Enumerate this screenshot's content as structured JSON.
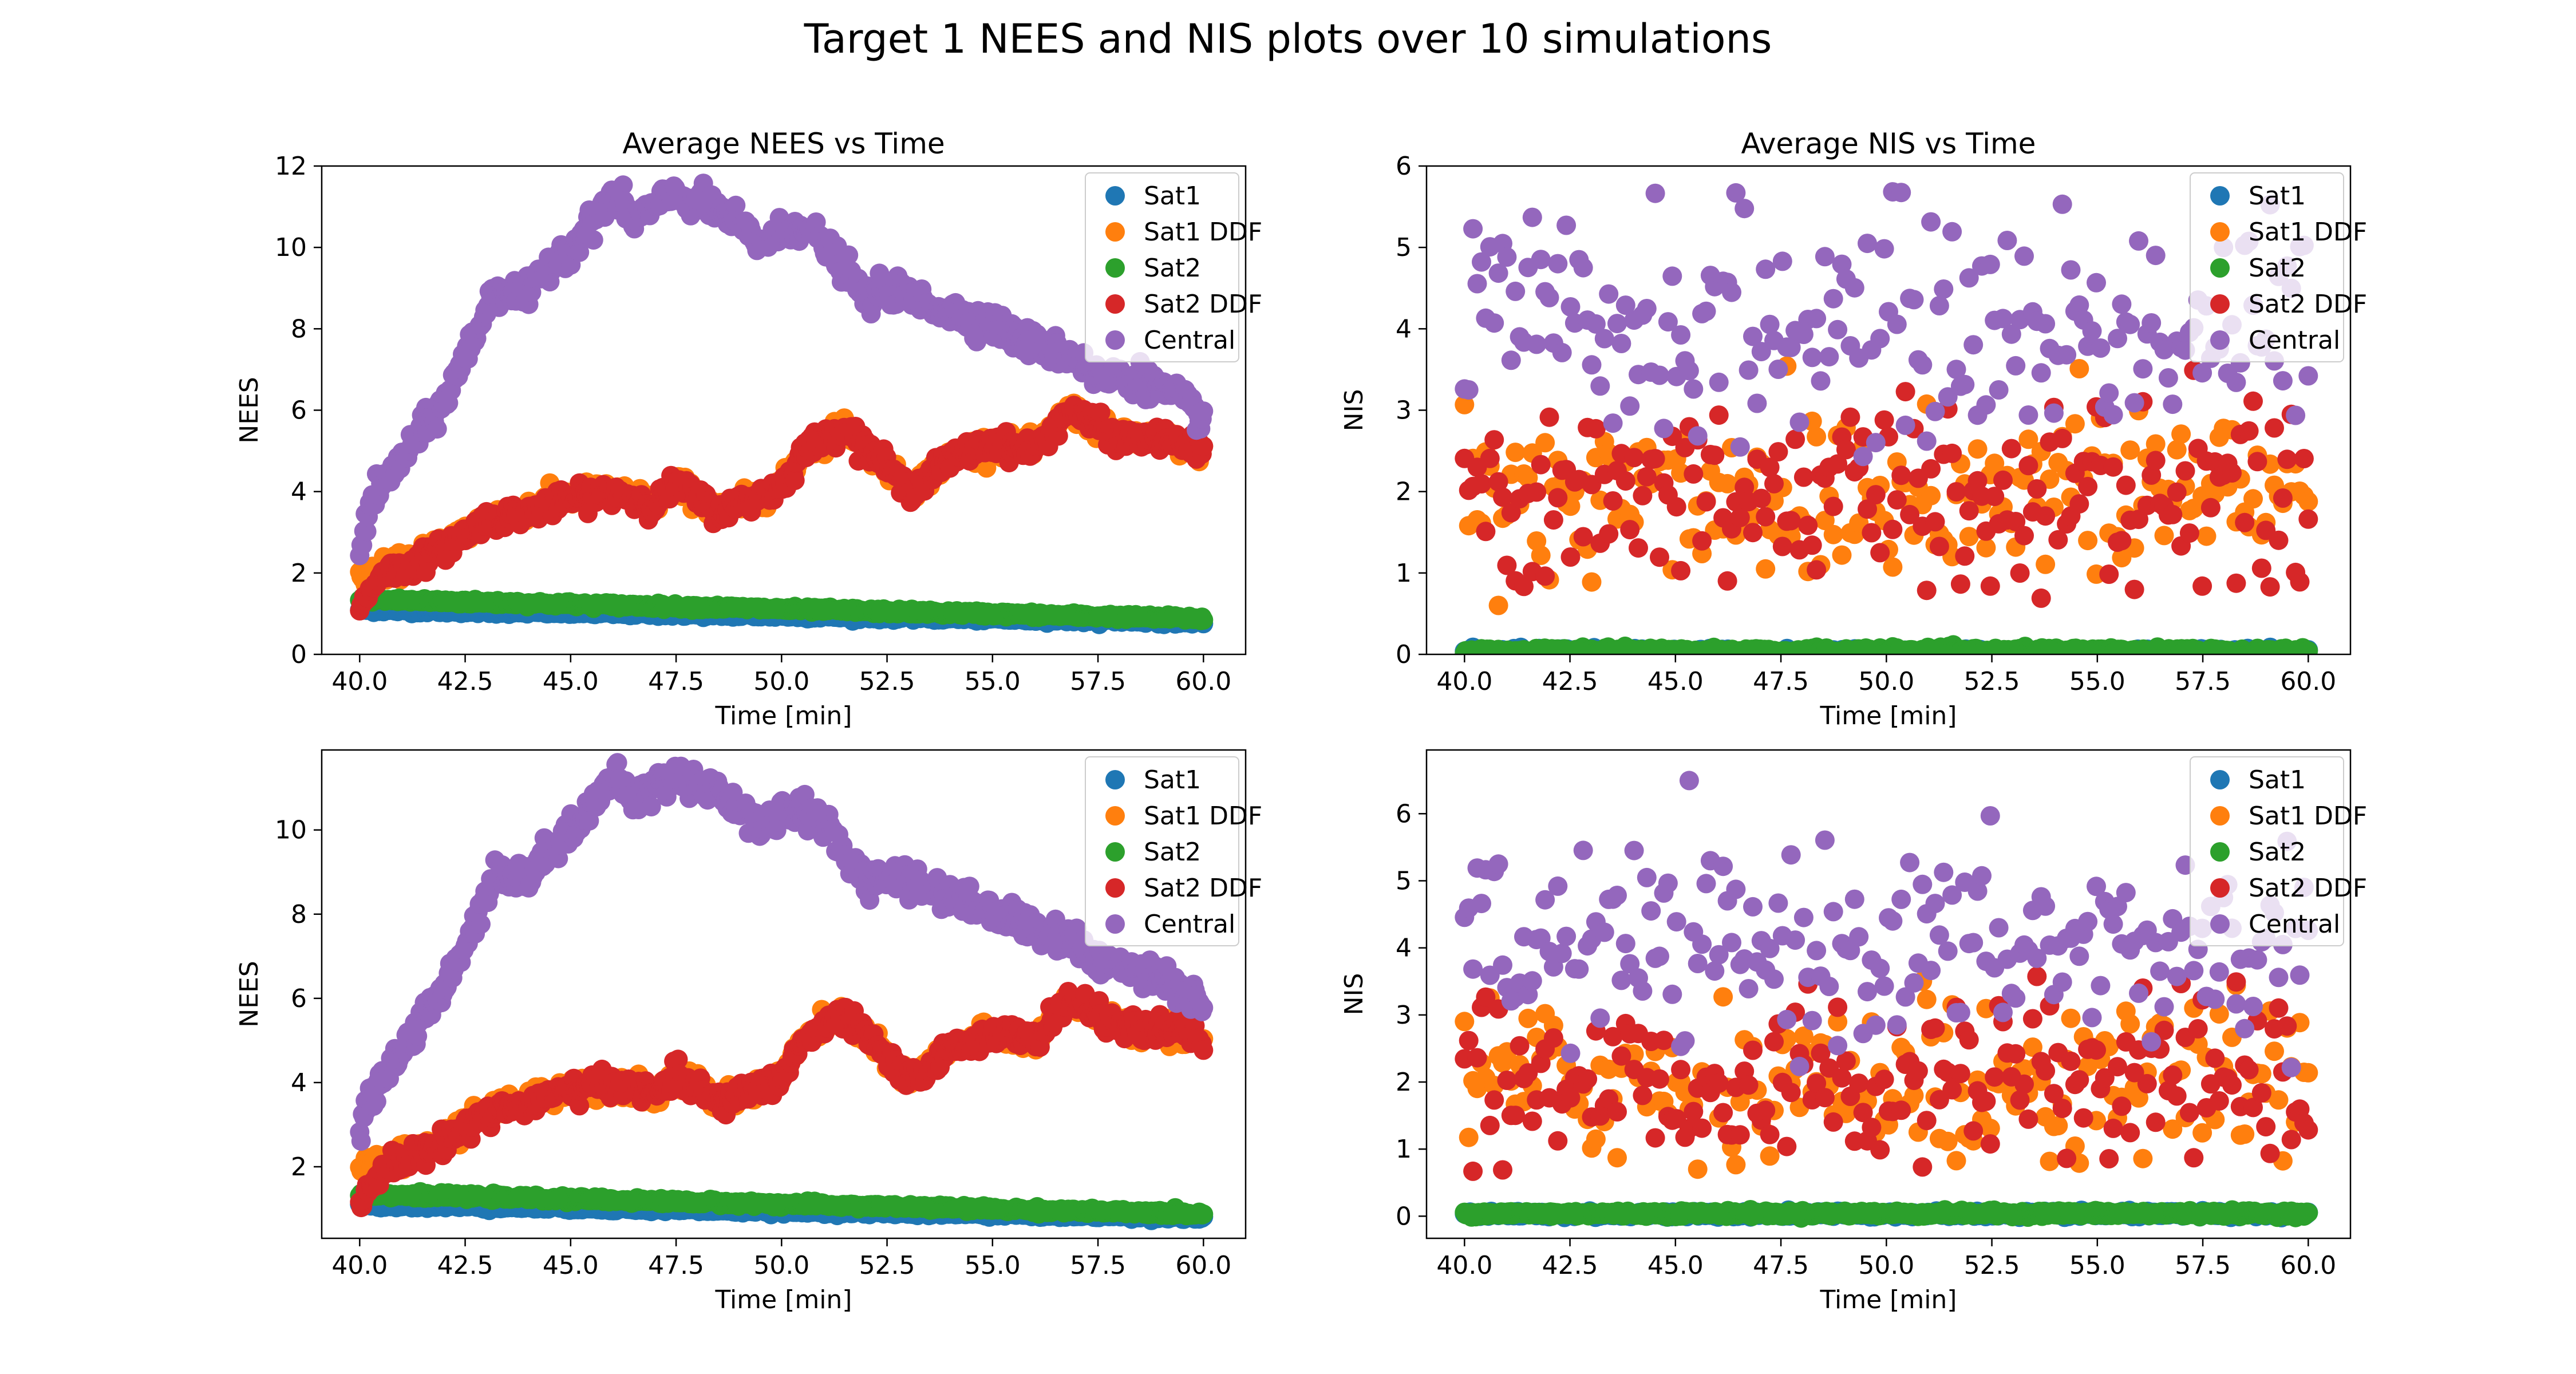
{
  "figure": {
    "suptitle": "Target 1 NEES and NIS plots over 10 simulations"
  },
  "colors": {
    "Sat1": "#1f77b4",
    "Sat1 DDF": "#ff7f0e",
    "Sat2": "#2ca02c",
    "Sat2 DDF": "#d62728",
    "Central": "#9467bd"
  },
  "chart_data": [
    {
      "type": "scatter",
      "title": "Average NEES vs Time",
      "xlabel": "Time [min]",
      "ylabel": "NEES",
      "xlim": [
        39.1,
        61.0
      ],
      "ylim": [
        0,
        12
      ],
      "xticks": [
        "40.0",
        "42.5",
        "45.0",
        "47.5",
        "50.0",
        "52.5",
        "55.0",
        "57.5",
        "60.0"
      ],
      "yticks": [
        "0",
        "2",
        "4",
        "6",
        "8",
        "10",
        "12"
      ],
      "legend": {
        "position": "top-right",
        "entries": [
          "Sat1",
          "Sat1 DDF",
          "Sat2",
          "Sat2 DDF",
          "Central"
        ]
      },
      "series": [
        {
          "name": "Sat1",
          "x_range": [
            40.0,
            60.0
          ],
          "y_keypoints": [
            [
              40,
              1.1
            ],
            [
              60,
              0.8
            ]
          ],
          "pattern": "dense"
        },
        {
          "name": "Sat1 DDF",
          "x_range": [
            40.0,
            60.0
          ],
          "y_keypoints": [
            [
              40,
              1.9
            ],
            [
              41,
              2.2
            ],
            [
              42,
              2.7
            ],
            [
              43,
              3.3
            ],
            [
              44,
              3.6
            ],
            [
              45,
              3.9
            ],
            [
              46,
              4.0
            ],
            [
              47,
              3.7
            ],
            [
              47.5,
              4.2
            ],
            [
              48.5,
              3.5
            ],
            [
              49.5,
              3.9
            ],
            [
              50,
              4.1
            ],
            [
              50.5,
              5.0
            ],
            [
              51.5,
              5.6
            ],
            [
              52.5,
              4.6
            ],
            [
              53,
              4.0
            ],
            [
              54,
              4.8
            ],
            [
              55,
              5.2
            ],
            [
              56,
              5.0
            ],
            [
              56.8,
              6.0
            ],
            [
              57.5,
              5.6
            ],
            [
              58,
              5.3
            ],
            [
              59,
              5.3
            ],
            [
              60,
              5.0
            ]
          ],
          "pattern": "dense"
        },
        {
          "name": "Sat2",
          "x_range": [
            40.0,
            60.0
          ],
          "y_keypoints": [
            [
              40,
              1.35
            ],
            [
              60,
              0.88
            ]
          ],
          "pattern": "dense"
        },
        {
          "name": "Sat2 DDF",
          "x_range": [
            40.0,
            60.0
          ],
          "y_keypoints": [
            [
              40,
              1.1
            ],
            [
              40.5,
              2.0
            ],
            [
              41,
              2.1
            ],
            [
              42,
              2.6
            ],
            [
              43,
              3.3
            ],
            [
              44,
              3.5
            ],
            [
              45,
              3.8
            ],
            [
              46,
              4.0
            ],
            [
              47,
              3.7
            ],
            [
              47.5,
              4.2
            ],
            [
              48.5,
              3.5
            ],
            [
              49.5,
              3.9
            ],
            [
              50,
              4.1
            ],
            [
              50.5,
              5.0
            ],
            [
              51.5,
              5.6
            ],
            [
              52.5,
              4.6
            ],
            [
              53,
              4.0
            ],
            [
              54,
              4.8
            ],
            [
              55,
              5.2
            ],
            [
              56,
              5.0
            ],
            [
              56.8,
              6.0
            ],
            [
              57.5,
              5.6
            ],
            [
              58,
              5.3
            ],
            [
              59,
              5.3
            ],
            [
              60,
              5.0
            ]
          ],
          "pattern": "dense"
        },
        {
          "name": "Central",
          "x_range": [
            40.0,
            60.0
          ],
          "y_keypoints": [
            [
              40,
              2.7
            ],
            [
              40.3,
              3.8
            ],
            [
              41,
              4.8
            ],
            [
              42,
              6.2
            ],
            [
              42.8,
              8.0
            ],
            [
              43.2,
              9.0
            ],
            [
              44,
              8.8
            ],
            [
              44.5,
              9.6
            ],
            [
              45.3,
              10.3
            ],
            [
              46,
              11.3
            ],
            [
              46.5,
              10.7
            ],
            [
              47.5,
              11.3
            ],
            [
              48.5,
              10.9
            ],
            [
              49.5,
              10.1
            ],
            [
              50.5,
              10.6
            ],
            [
              51.5,
              9.5
            ],
            [
              52,
              8.7
            ],
            [
              52.5,
              9.0
            ],
            [
              53.5,
              8.6
            ],
            [
              55,
              8.1
            ],
            [
              56,
              7.6
            ],
            [
              57,
              7.3
            ],
            [
              57.5,
              6.8
            ],
            [
              58.5,
              6.8
            ],
            [
              59.5,
              6.2
            ],
            [
              60,
              5.8
            ]
          ],
          "pattern": "dense"
        }
      ]
    },
    {
      "type": "scatter",
      "title": "Average NIS vs Time",
      "xlabel": "Time [min]",
      "ylabel": "NIS",
      "xlim": [
        39.1,
        61.0
      ],
      "ylim": [
        0,
        6
      ],
      "xticks": [
        "40.0",
        "42.5",
        "45.0",
        "47.5",
        "50.0",
        "52.5",
        "55.0",
        "57.5",
        "60.0"
      ],
      "yticks": [
        "0",
        "1",
        "2",
        "3",
        "4",
        "5",
        "6"
      ],
      "legend": {
        "position": "top-right",
        "entries": [
          "Sat1",
          "Sat1 DDF",
          "Sat2",
          "Sat2 DDF",
          "Central"
        ]
      },
      "series": [
        {
          "name": "Sat1",
          "x_range": [
            40.0,
            60.0
          ],
          "mean": 0.03,
          "spread": 0.02,
          "pattern": "dense"
        },
        {
          "name": "Sat1 DDF",
          "x_range": [
            40.0,
            60.0
          ],
          "mean": 2.0,
          "spread": 0.6,
          "pattern": "sparse"
        },
        {
          "name": "Sat2",
          "x_range": [
            40.0,
            60.0
          ],
          "mean": 0.04,
          "spread": 0.02,
          "pattern": "dense"
        },
        {
          "name": "Sat2 DDF",
          "x_range": [
            40.0,
            60.0
          ],
          "mean": 2.0,
          "spread": 0.6,
          "pattern": "sparse"
        },
        {
          "name": "Central",
          "x_range": [
            40.0,
            60.0
          ],
          "mean": 4.0,
          "spread": 0.7,
          "pattern": "sparse"
        }
      ]
    },
    {
      "type": "scatter",
      "title": "",
      "xlabel": "Time [min]",
      "ylabel": "NEES",
      "xlim": [
        39.1,
        61.0
      ],
      "ylim": [
        0.3,
        11.9
      ],
      "xticks": [
        "40.0",
        "42.5",
        "45.0",
        "47.5",
        "50.0",
        "52.5",
        "55.0",
        "57.5",
        "60.0"
      ],
      "yticks": [
        "2",
        "4",
        "6",
        "8",
        "10"
      ],
      "legend": {
        "position": "top-right",
        "entries": [
          "Sat1",
          "Sat1 DDF",
          "Sat2",
          "Sat2 DDF",
          "Central"
        ]
      },
      "series": [
        {
          "name": "Sat1",
          "x_range": [
            40.0,
            60.0
          ],
          "y_keypoints": [
            [
              40,
              1.1
            ],
            [
              60,
              0.8
            ]
          ],
          "pattern": "dense"
        },
        {
          "name": "Sat1 DDF",
          "x_range": [
            40.0,
            60.0
          ],
          "y_keypoints": [
            [
              40,
              1.9
            ],
            [
              41,
              2.2
            ],
            [
              42,
              2.7
            ],
            [
              43,
              3.3
            ],
            [
              44,
              3.6
            ],
            [
              45,
              3.9
            ],
            [
              46,
              4.0
            ],
            [
              47,
              3.7
            ],
            [
              47.5,
              4.2
            ],
            [
              48.5,
              3.5
            ],
            [
              49.5,
              3.9
            ],
            [
              50,
              4.1
            ],
            [
              50.5,
              5.0
            ],
            [
              51.5,
              5.6
            ],
            [
              52.5,
              4.6
            ],
            [
              53,
              4.0
            ],
            [
              54,
              4.8
            ],
            [
              55,
              5.2
            ],
            [
              56,
              5.0
            ],
            [
              56.8,
              6.0
            ],
            [
              57.5,
              5.6
            ],
            [
              58,
              5.3
            ],
            [
              59,
              5.3
            ],
            [
              60,
              5.0
            ]
          ],
          "pattern": "dense"
        },
        {
          "name": "Sat2",
          "x_range": [
            40.0,
            60.0
          ],
          "y_keypoints": [
            [
              40,
              1.35
            ],
            [
              60,
              0.88
            ]
          ],
          "pattern": "dense"
        },
        {
          "name": "Sat2 DDF",
          "x_range": [
            40.0,
            60.0
          ],
          "y_keypoints": [
            [
              40,
              1.1
            ],
            [
              40.5,
              2.0
            ],
            [
              41,
              2.1
            ],
            [
              42,
              2.6
            ],
            [
              43,
              3.3
            ],
            [
              44,
              3.5
            ],
            [
              45,
              3.8
            ],
            [
              46,
              4.0
            ],
            [
              47,
              3.7
            ],
            [
              47.5,
              4.2
            ],
            [
              48.5,
              3.5
            ],
            [
              49.5,
              3.9
            ],
            [
              50,
              4.1
            ],
            [
              50.5,
              5.0
            ],
            [
              51.5,
              5.6
            ],
            [
              52.5,
              4.6
            ],
            [
              53,
              4.0
            ],
            [
              54,
              4.8
            ],
            [
              55,
              5.2
            ],
            [
              56,
              5.0
            ],
            [
              56.8,
              6.0
            ],
            [
              57.5,
              5.6
            ],
            [
              58,
              5.3
            ],
            [
              59,
              5.3
            ],
            [
              60,
              5.0
            ]
          ],
          "pattern": "dense"
        },
        {
          "name": "Central",
          "x_range": [
            40.0,
            60.0
          ],
          "y_keypoints": [
            [
              40,
              2.7
            ],
            [
              40.3,
              3.8
            ],
            [
              41,
              4.8
            ],
            [
              42,
              6.2
            ],
            [
              42.8,
              8.0
            ],
            [
              43.2,
              9.0
            ],
            [
              44,
              8.8
            ],
            [
              44.5,
              9.6
            ],
            [
              45.3,
              10.3
            ],
            [
              46,
              11.3
            ],
            [
              46.5,
              10.7
            ],
            [
              47.5,
              11.3
            ],
            [
              48.5,
              10.9
            ],
            [
              49.5,
              10.1
            ],
            [
              50.5,
              10.6
            ],
            [
              51.5,
              9.5
            ],
            [
              52,
              8.7
            ],
            [
              52.5,
              9.0
            ],
            [
              53.5,
              8.6
            ],
            [
              55,
              8.1
            ],
            [
              56,
              7.6
            ],
            [
              57,
              7.3
            ],
            [
              57.5,
              6.8
            ],
            [
              58.5,
              6.8
            ],
            [
              59.5,
              6.2
            ],
            [
              60,
              5.8
            ]
          ],
          "pattern": "dense"
        }
      ]
    },
    {
      "type": "scatter",
      "title": "",
      "xlabel": "Time [min]",
      "ylabel": "NIS",
      "xlim": [
        39.1,
        61.0
      ],
      "ylim": [
        -0.33,
        6.95
      ],
      "xticks": [
        "40.0",
        "42.5",
        "45.0",
        "47.5",
        "50.0",
        "52.5",
        "55.0",
        "57.5",
        "60.0"
      ],
      "yticks": [
        "0",
        "1",
        "2",
        "3",
        "4",
        "5",
        "6"
      ],
      "legend": {
        "position": "top-right",
        "entries": [
          "Sat1",
          "Sat1 DDF",
          "Sat2",
          "Sat2 DDF",
          "Central"
        ]
      },
      "series": [
        {
          "name": "Sat1",
          "x_range": [
            40.0,
            60.0
          ],
          "mean": 0.03,
          "spread": 0.02,
          "pattern": "dense"
        },
        {
          "name": "Sat1 DDF",
          "x_range": [
            40.0,
            60.0
          ],
          "mean": 2.0,
          "spread": 0.6,
          "pattern": "sparse"
        },
        {
          "name": "Sat2",
          "x_range": [
            40.0,
            60.0
          ],
          "mean": 0.04,
          "spread": 0.02,
          "pattern": "dense"
        },
        {
          "name": "Sat2 DDF",
          "x_range": [
            40.0,
            60.0
          ],
          "mean": 2.0,
          "spread": 0.6,
          "pattern": "sparse"
        },
        {
          "name": "Central",
          "x_range": [
            40.0,
            60.0
          ],
          "mean": 4.0,
          "spread": 0.7,
          "pattern": "sparse"
        }
      ]
    }
  ]
}
